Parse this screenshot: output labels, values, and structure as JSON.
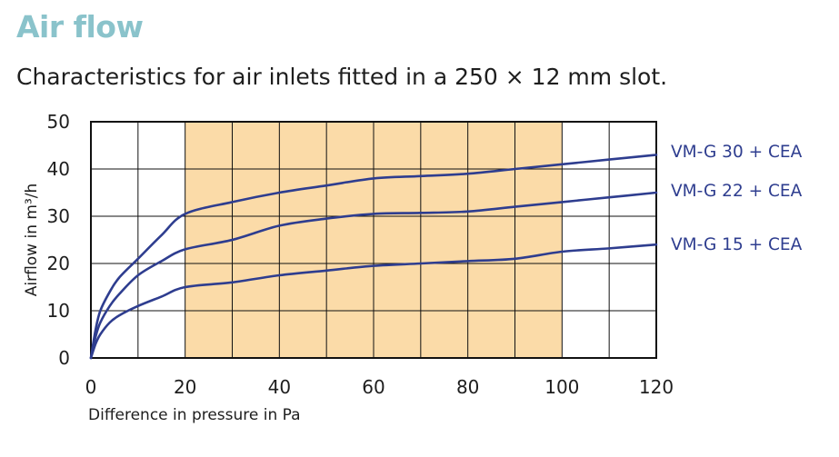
{
  "header": {
    "title": "Air flow",
    "subtitle": "Characteristics for air inlets fitted in a 250 × 12 mm slot."
  },
  "colors": {
    "title": "#8ac3cb",
    "series": "#2e3d8f",
    "highlight": "#fbdba8",
    "grid": "#111111"
  },
  "chart_data": {
    "type": "line",
    "xlabel": "Difference in pressure in Pa",
    "ylabel": "Airflow in m³/h",
    "xlim": [
      0,
      120
    ],
    "ylim": [
      0,
      50
    ],
    "xticks": [
      "0",
      "20",
      "40",
      "60",
      "80",
      "100",
      "120"
    ],
    "yticks": [
      "0",
      "10",
      "20",
      "30",
      "40",
      "50"
    ],
    "grid": true,
    "highlight_range": [
      20,
      100
    ],
    "series": [
      {
        "name": "VM-G 30 + CEA",
        "x": [
          0,
          1,
          2,
          4,
          6,
          10,
          15,
          20,
          30,
          40,
          50,
          60,
          70,
          80,
          90,
          100,
          110,
          120
        ],
        "y": [
          0,
          6,
          10,
          14,
          17,
          21,
          26,
          30.5,
          33,
          35,
          36.5,
          38,
          38.5,
          39,
          40,
          41,
          42,
          43
        ]
      },
      {
        "name": "VM-G 22 + CEA",
        "x": [
          0,
          1,
          2,
          4,
          6,
          10,
          15,
          20,
          30,
          40,
          50,
          60,
          70,
          80,
          90,
          100,
          110,
          120
        ],
        "y": [
          0,
          4.5,
          7.5,
          11,
          13.5,
          17.5,
          20.5,
          23,
          25,
          28,
          29.5,
          30.5,
          30.7,
          31,
          32,
          33,
          34,
          35
        ]
      },
      {
        "name": "VM-G 15 + CEA",
        "x": [
          0,
          1,
          2,
          4,
          6,
          10,
          15,
          20,
          30,
          40,
          50,
          60,
          70,
          80,
          90,
          100,
          110,
          120
        ],
        "y": [
          0,
          3,
          5,
          7.5,
          9,
          11,
          13,
          15,
          16,
          17.5,
          18.5,
          19.5,
          20,
          20.5,
          21,
          22.5,
          23.2,
          24
        ]
      }
    ]
  }
}
